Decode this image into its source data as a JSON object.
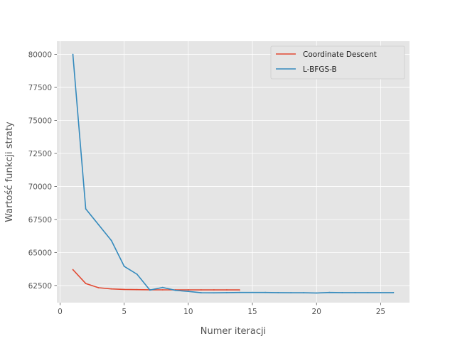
{
  "chart_data": {
    "type": "line",
    "title": "",
    "xlabel": "Numer iteracji",
    "ylabel": "Wartość funkcji straty",
    "xlim": [
      -0.25,
      27.25
    ],
    "ylim": [
      61200,
      81000
    ],
    "xticks": [
      0,
      5,
      10,
      15,
      20,
      25
    ],
    "yticks": [
      62500,
      65000,
      67500,
      70000,
      72500,
      75000,
      77500,
      80000
    ],
    "grid": true,
    "legend_position": "top-right",
    "series": [
      {
        "name": "Coordinate Descent",
        "color": "#E24A33",
        "x": [
          1,
          2,
          3,
          4,
          5,
          6,
          7,
          8,
          9,
          10,
          11,
          12,
          13,
          14
        ],
        "values": [
          63700,
          62650,
          62330,
          62240,
          62200,
          62185,
          62175,
          62170,
          62168,
          62166,
          62165,
          62164,
          62164,
          62163
        ]
      },
      {
        "name": "L-BFGS-B",
        "color": "#348ABD",
        "x": [
          1,
          2,
          3,
          4,
          5,
          6,
          7,
          8,
          9,
          10,
          11,
          12,
          13,
          14,
          15,
          16,
          17,
          18,
          19,
          20,
          21,
          22,
          23,
          24,
          25,
          26
        ],
        "values": [
          80000,
          68300,
          67100,
          65900,
          63950,
          63350,
          62150,
          62350,
          62130,
          62050,
          61950,
          61940,
          61960,
          61970,
          61970,
          61970,
          61960,
          61950,
          61950,
          61930,
          61970,
          61960,
          61960,
          61960,
          61960,
          61960
        ]
      }
    ]
  }
}
